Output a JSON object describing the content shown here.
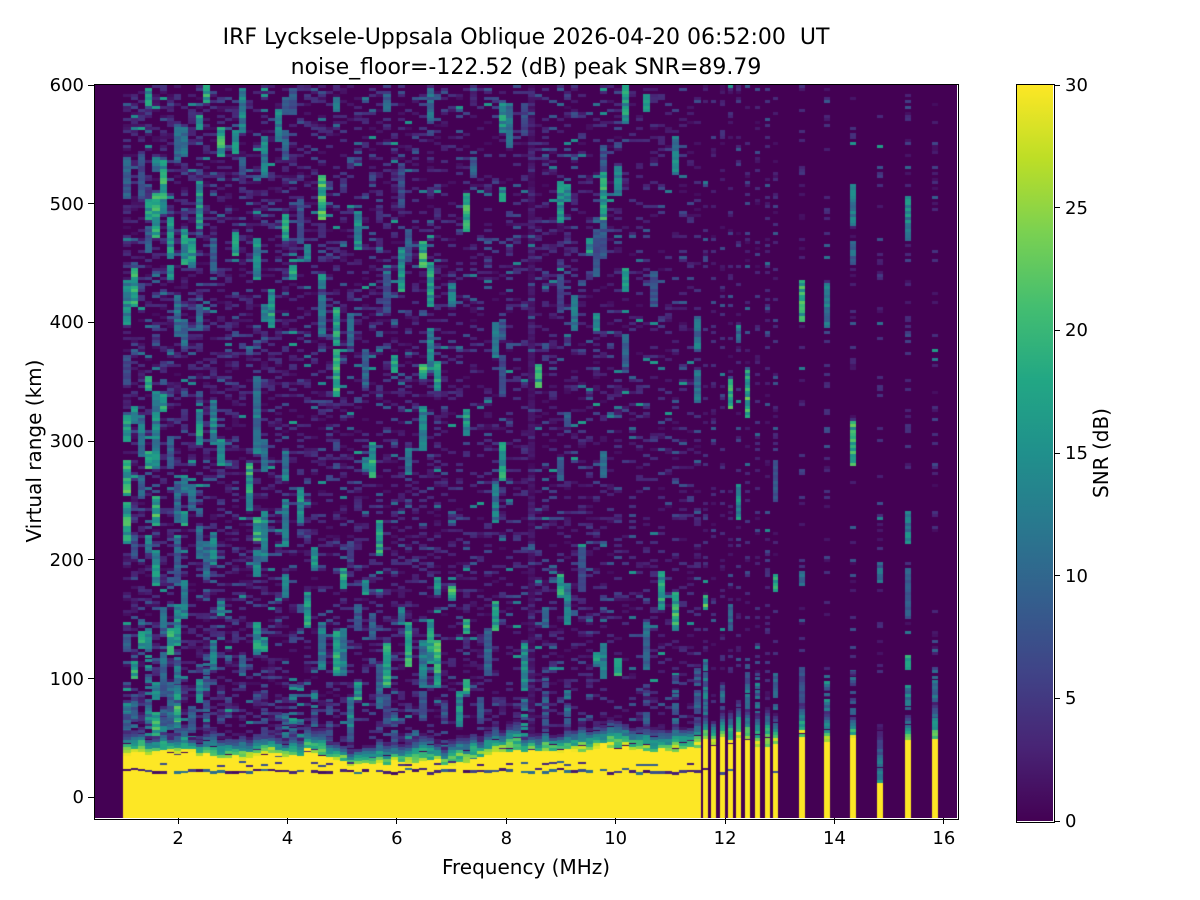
{
  "chart_data": {
    "type": "heatmap",
    "title_line1": "IRF Lycksele-Uppsala Oblique 2026-04-20 06:52:00  UT",
    "title_line2": "noise_floor=-122.52 (dB) peak SNR=89.79",
    "station": "IRF Lycksele-Uppsala Oblique",
    "timestamp_ut": "2026-04-20 06:52:00",
    "noise_floor_db": -122.52,
    "peak_snr_db": 89.79,
    "xlabel": "Frequency (MHz)",
    "ylabel": "Virtual range (km)",
    "colorbar_label": "SNR (dB)",
    "xlim": [
      0.48,
      16.24
    ],
    "ylim": [
      -17.5,
      600
    ],
    "x_ticks": [
      2,
      4,
      6,
      8,
      10,
      12,
      14,
      16
    ],
    "y_ticks": [
      0,
      100,
      200,
      300,
      400,
      500,
      600
    ],
    "colorbar_ticks": [
      0,
      5,
      10,
      15,
      20,
      25,
      30
    ],
    "colorbar_range": [
      0,
      30
    ],
    "colormap": "viridis",
    "colormap_rgb": [
      [
        68,
        1,
        84
      ],
      [
        72,
        36,
        117
      ],
      [
        64,
        67,
        135
      ],
      [
        52,
        94,
        141
      ],
      [
        41,
        120,
        142
      ],
      [
        32,
        144,
        140
      ],
      [
        34,
        167,
        132
      ],
      [
        68,
        190,
        112
      ],
      [
        122,
        209,
        81
      ],
      [
        189,
        222,
        38
      ],
      [
        253,
        231,
        37
      ]
    ],
    "grid": false,
    "legend": "none",
    "structure": {
      "freq_start_mhz": 1.0,
      "continuous_until_mhz": 11.56,
      "freq_step_mhz": 0.132,
      "discrete_close_mhz": [
        11.63,
        11.78,
        11.95,
        12.09,
        12.24,
        12.4,
        12.59,
        12.77,
        12.91
      ],
      "discrete_sparse_mhz": [
        13.41,
        13.86,
        14.34,
        14.83,
        15.35,
        15.84
      ],
      "dim_column_mhz": 14.83,
      "ground_band_top_km": 36,
      "ground_band_snr_db": 30,
      "dark_line_km": 23,
      "interference_stripe_mhz": 8.35,
      "seed": 20260420
    }
  }
}
